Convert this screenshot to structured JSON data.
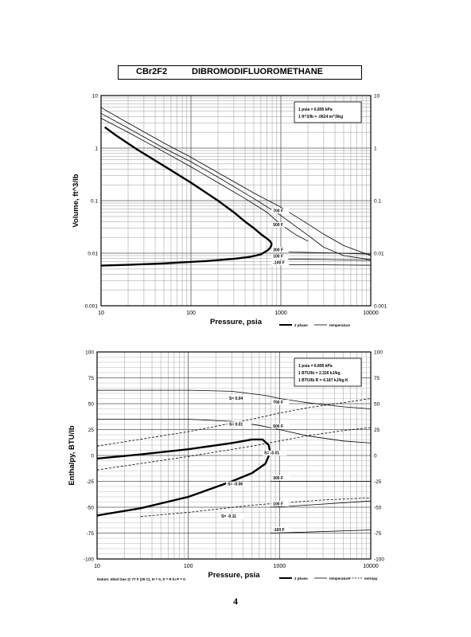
{
  "header": {
    "formula": "CBr2F2",
    "compound": "DIBROMODIFLUOROMETHANE"
  },
  "page_number": "4",
  "chart_data": [
    {
      "type": "line",
      "xscale": "log",
      "yscale": "log",
      "xlim": [
        10,
        10000
      ],
      "ylim": [
        0.001,
        10
      ],
      "xlabel": "Pressure,  psia",
      "ylabel": "Volume, ft^3/lb",
      "x_tick_labels": [
        "10",
        "100",
        "1000",
        "10000"
      ],
      "y_tick_labels": [
        "0.001",
        "0.01",
        "0.1",
        "1",
        "10"
      ],
      "grid": true,
      "conversion_box": [
        "1 psia = 6.895 kPa",
        "1 ft^3/lb = .0624 m^3/kg"
      ],
      "legend": [
        "2 phase",
        "temperature"
      ],
      "legend_position": "bottom-right",
      "isotherm_labels": [
        "700 F",
        "500 F",
        "300 F",
        "100 F",
        "-100 F"
      ],
      "series": [
        {
          "name": "2 phase",
          "style": "bold",
          "points": [
            [
              11,
              2.5
            ],
            [
              15,
              1.7
            ],
            [
              25,
              0.95
            ],
            [
              50,
              0.46
            ],
            [
              100,
              0.22
            ],
            [
              200,
              0.1
            ],
            [
              300,
              0.06
            ],
            [
              400,
              0.04
            ],
            [
              500,
              0.03
            ],
            [
              600,
              0.023
            ],
            [
              700,
              0.019
            ],
            [
              760,
              0.017
            ],
            [
              790,
              0.015
            ],
            [
              770,
              0.013
            ],
            [
              720,
              0.0115
            ],
            [
              600,
              0.0095
            ],
            [
              450,
              0.0085
            ],
            [
              300,
              0.0078
            ],
            [
              150,
              0.0071
            ],
            [
              50,
              0.0064
            ],
            [
              20,
              0.006
            ],
            [
              10,
              0.0058
            ]
          ]
        },
        {
          "name": "",
          "style": "thin",
          "points": [
            [
              10,
              3.7
            ],
            [
              20,
              2.0
            ],
            [
              50,
              0.85
            ],
            [
              100,
              0.44
            ],
            [
              200,
              0.22
            ],
            [
              400,
              0.11
            ],
            [
              700,
              0.06
            ],
            [
              1000,
              0.035
            ],
            [
              1500,
              0.022
            ],
            [
              2000,
              0.017
            ]
          ]
        },
        {
          "name": "",
          "style": "thin",
          "points": [
            [
              10,
              4.6
            ],
            [
              20,
              2.4
            ],
            [
              50,
              1.0
            ],
            [
              100,
              0.55
            ],
            [
              200,
              0.28
            ],
            [
              500,
              0.11
            ],
            [
              1000,
              0.052
            ],
            [
              2000,
              0.022
            ],
            [
              3000,
              0.013
            ],
            [
              5000,
              0.009
            ],
            [
              10000,
              0.0075
            ]
          ]
        },
        {
          "name": "",
          "style": "thin",
          "points": [
            [
              10,
              5.9
            ],
            [
              20,
              3.0
            ],
            [
              50,
              1.25
            ],
            [
              100,
              0.67
            ],
            [
              200,
              0.34
            ],
            [
              500,
              0.14
            ],
            [
              1000,
              0.075
            ],
            [
              2000,
              0.036
            ],
            [
              3000,
              0.023
            ],
            [
              5000,
              0.014
            ],
            [
              10000,
              0.009
            ]
          ]
        },
        {
          "name": "",
          "style": "thin",
          "points": [
            [
              1200,
              0.0105
            ],
            [
              3000,
              0.0102
            ],
            [
              10000,
              0.0096
            ]
          ]
        },
        {
          "name": "",
          "style": "thin",
          "points": [
            [
              1200,
              0.0077
            ],
            [
              3000,
              0.0076
            ],
            [
              10000,
              0.0073
            ]
          ]
        },
        {
          "name": "",
          "style": "thin",
          "points": [
            [
              1200,
              0.006
            ],
            [
              3000,
              0.006
            ],
            [
              10000,
              0.0059
            ]
          ]
        }
      ]
    },
    {
      "type": "line",
      "xscale": "log",
      "xlim": [
        10,
        10000
      ],
      "ylim": [
        -100,
        100
      ],
      "xlabel": "Pressure,  psia",
      "ylabel": "Enthalpy, BTU/lb",
      "x_tick_labels": [
        "10",
        "100",
        "1000",
        "10000"
      ],
      "y_tick_labels": [
        "100",
        "75",
        "50",
        "25",
        "0",
        "-25",
        "-50",
        "-75",
        "-100"
      ],
      "grid": true,
      "conversion_box": [
        "1 psia = 6.895 kPa",
        "1 BTU/lb = 2.326 kJ/kg",
        "1 BTU/lb R = 4.187 kJ/kg K"
      ],
      "legend": [
        "2 phase",
        "temperature",
        "entropy"
      ],
      "legend_position": "bottom-right",
      "footnote": "Datum: Ideal Gas @ 77 F (25 C),  H = 0,  S = R ln P = 0",
      "isotherm_labels": [
        "700 F",
        "500 F",
        "300 F",
        "100 F",
        "-100 F"
      ],
      "entropy_labels": [
        "S= 0.04",
        "S= 0.01",
        "S= -0.01",
        "S= -0.06",
        "S= -0.11"
      ],
      "series": [
        {
          "name": "2 phase",
          "style": "bold",
          "points": [
            [
              10,
              -3
            ],
            [
              30,
              1
            ],
            [
              100,
              6
            ],
            [
              300,
              12
            ],
            [
              500,
              15.5
            ],
            [
              650,
              15.5
            ],
            [
              760,
              10
            ],
            [
              790,
              3
            ],
            [
              700,
              -8
            ],
            [
              500,
              -17
            ],
            [
              300,
              -25
            ],
            [
              100,
              -40
            ],
            [
              30,
              -51
            ],
            [
              10,
              -58
            ]
          ]
        },
        {
          "name": "",
          "style": "thin",
          "points": [
            [
              10,
              63
            ],
            [
              100,
              63
            ],
            [
              300,
              62
            ],
            [
              700,
              58
            ],
            [
              1000,
              55
            ],
            [
              2000,
              51
            ],
            [
              5000,
              47
            ],
            [
              10000,
              45
            ]
          ]
        },
        {
          "name": "",
          "style": "thin",
          "points": [
            [
              10,
              35
            ],
            [
              100,
              35
            ],
            [
              300,
              33
            ],
            [
              600,
              29
            ],
            [
              1000,
              25
            ],
            [
              2000,
              19
            ],
            [
              5000,
              14
            ],
            [
              10000,
              12
            ]
          ]
        },
        {
          "name": "",
          "style": "thin",
          "points": [
            [
              800,
              -25
            ],
            [
              2000,
              -25
            ],
            [
              10000,
              -25
            ]
          ]
        },
        {
          "name": "",
          "style": "thin",
          "points": [
            [
              800,
              -50
            ],
            [
              2000,
              -48
            ],
            [
              10000,
              -44
            ]
          ]
        },
        {
          "name": "",
          "style": "thin",
          "points": [
            [
              800,
              -75
            ],
            [
              2000,
              -74
            ],
            [
              10000,
              -72
            ]
          ]
        },
        {
          "name": "",
          "style": "dashed",
          "points": [
            [
              10,
              9
            ],
            [
              100,
              23
            ],
            [
              500,
              35
            ],
            [
              1000,
              41
            ],
            [
              2000,
              46
            ],
            [
              5000,
              51
            ],
            [
              10000,
              55
            ]
          ]
        },
        {
          "name": "",
          "style": "dashed",
          "points": [
            [
              10,
              -14
            ],
            [
              100,
              -1
            ],
            [
              500,
              9
            ],
            [
              1000,
              14
            ],
            [
              2000,
              19
            ],
            [
              5000,
              24
            ],
            [
              10000,
              27
            ]
          ]
        },
        {
          "name": "",
          "style": "dashed",
          "points": [
            [
              30,
              -59
            ],
            [
              100,
              -55
            ],
            [
              500,
              -48
            ],
            [
              1000,
              -46
            ],
            [
              3000,
              -43
            ],
            [
              10000,
              -41
            ]
          ]
        }
      ]
    }
  ]
}
